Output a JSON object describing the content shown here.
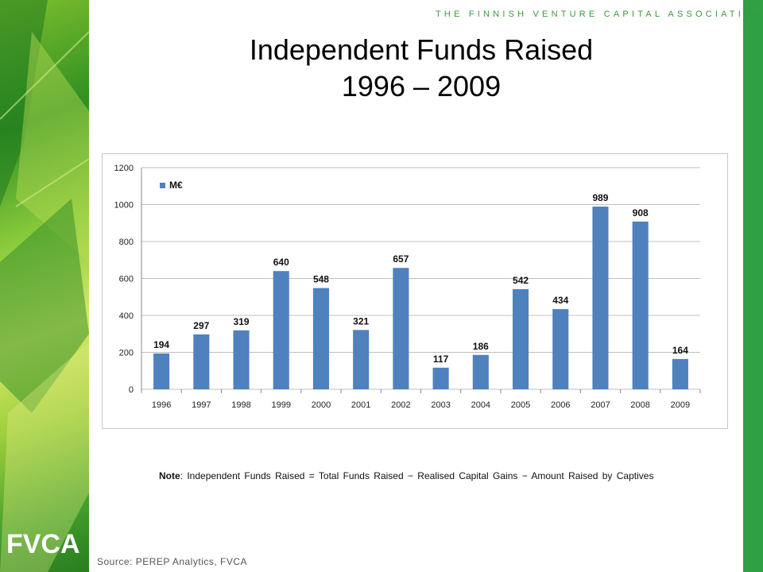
{
  "header": {
    "org_name": "THE FINNISH VENTURE CAPITAL ASSOCIATION",
    "title_line1": "Independent Funds Raised",
    "title_line2": "1996 – 2009"
  },
  "logo": {
    "text": "FVCA"
  },
  "note": {
    "label": "Note",
    "text": ": Independent Funds Raised = Total Funds Raised − Realised Capital Gains − Amount Raised by Captives"
  },
  "source": "Source: PEREP Analytics, FVCA",
  "colors": {
    "bar": "#4f81bd",
    "accent_green": "#2fa043",
    "grid": "#bfbfbf"
  },
  "chart_data": {
    "type": "bar",
    "categories": [
      "1996",
      "1997",
      "1998",
      "1999",
      "2000",
      "2001",
      "2002",
      "2003",
      "2004",
      "2005",
      "2006",
      "2007",
      "2008",
      "2009"
    ],
    "series": [
      {
        "name": "M€",
        "values": [
          194,
          297,
          319,
          640,
          548,
          321,
          657,
          117,
          186,
          542,
          434,
          989,
          908,
          164
        ]
      }
    ],
    "ylim": [
      0,
      1200
    ],
    "yticks": [
      0,
      200,
      400,
      600,
      800,
      1000,
      1200
    ],
    "grid": true,
    "legend_position": "top-left",
    "data_labels": true
  }
}
